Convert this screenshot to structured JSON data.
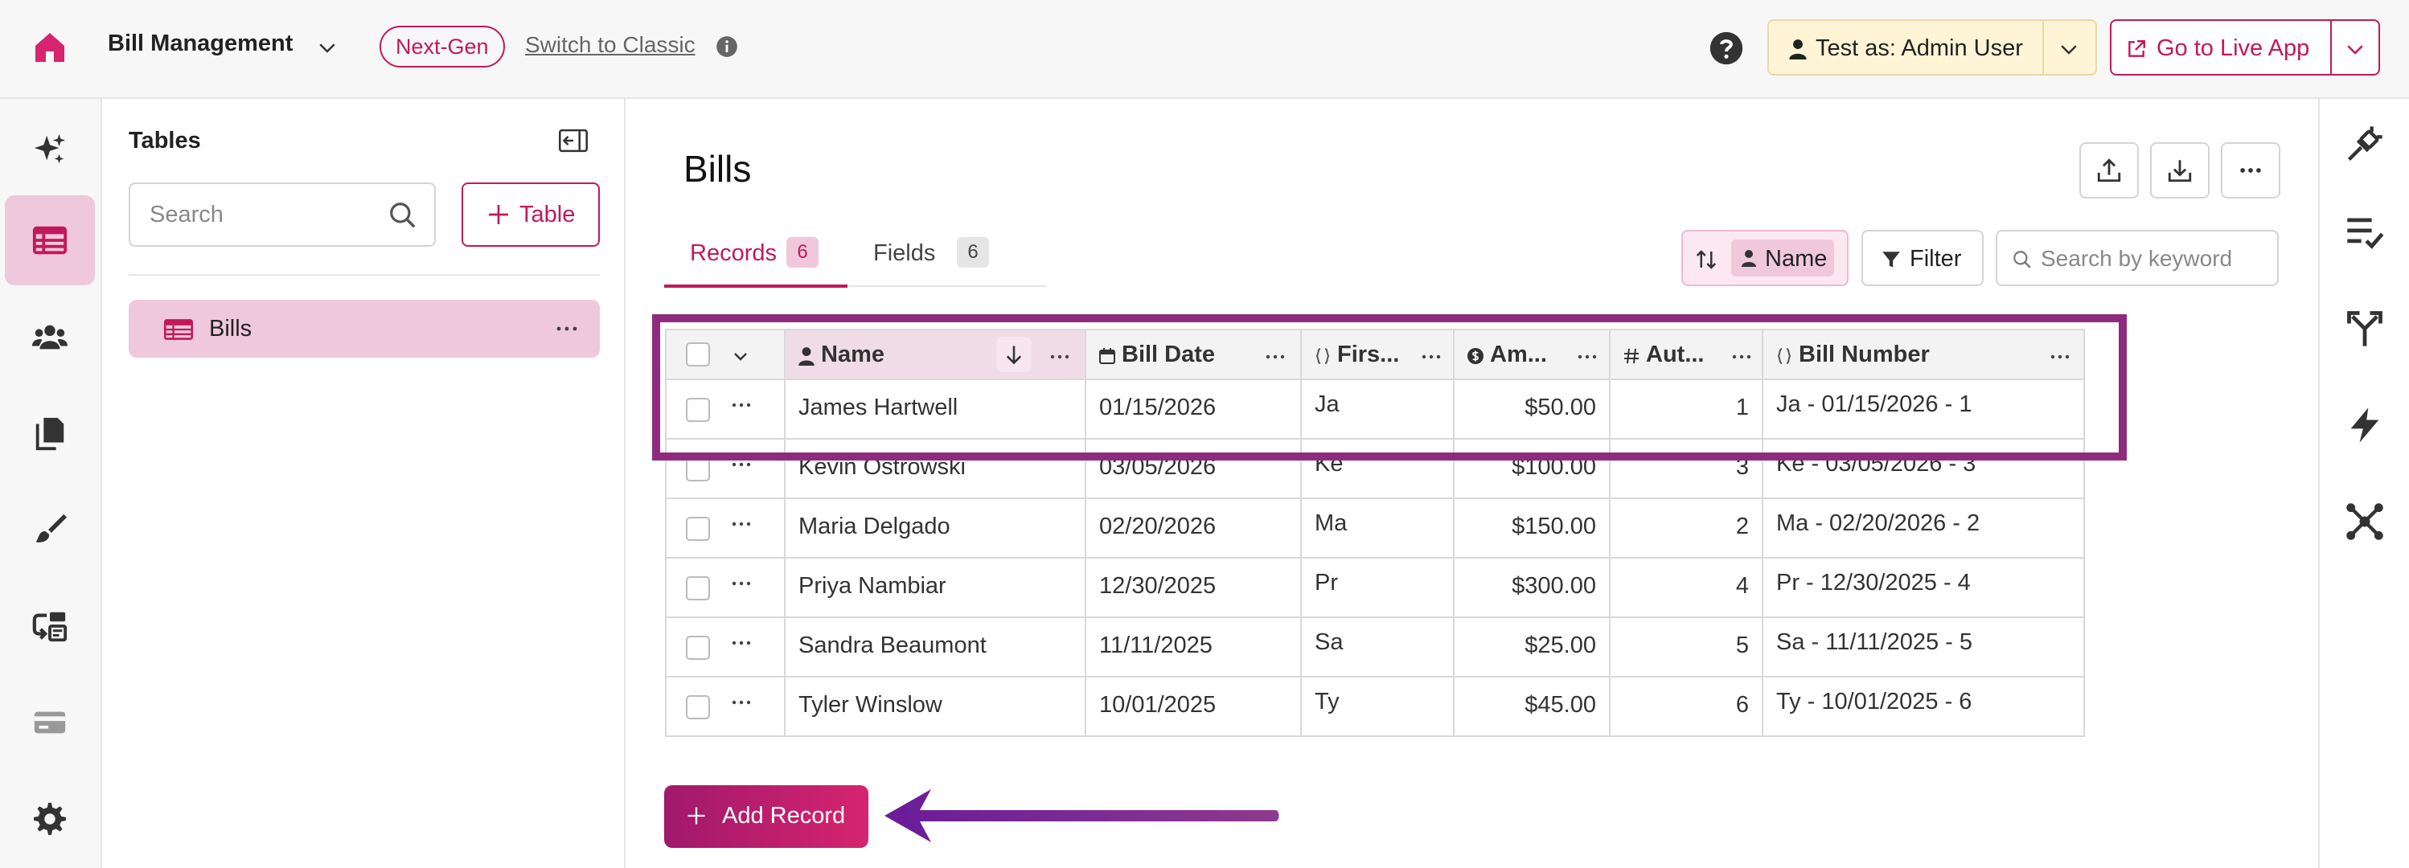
{
  "topbar": {
    "app_name": "Bill Management",
    "nextgen_badge": "Next-Gen",
    "switch_classic": "Switch to Classic",
    "test_as": "Test as: Admin User",
    "go_live": "Go to Live App"
  },
  "tables_panel": {
    "title": "Tables",
    "search_placeholder": "Search",
    "add_table_label": "Table",
    "items": [
      {
        "label": "Bills",
        "selected": true
      }
    ]
  },
  "main": {
    "title": "Bills",
    "tabs": [
      {
        "label": "Records",
        "count": "6",
        "active": true
      },
      {
        "label": "Fields",
        "count": "6",
        "active": false
      }
    ],
    "sort_label": "Name",
    "filter_label": "Filter",
    "keyword_placeholder": "Search by keyword",
    "add_record_label": "Add Record"
  },
  "grid": {
    "columns": [
      {
        "label": "Name",
        "icon": "person-icon"
      },
      {
        "label": "Bill Date",
        "icon": "calendar-icon"
      },
      {
        "label": "Firs...",
        "icon": "formula-icon"
      },
      {
        "label": "Am...",
        "icon": "currency-icon"
      },
      {
        "label": "Aut...",
        "icon": "hash-icon"
      },
      {
        "label": "Bill Number",
        "icon": "formula-icon"
      }
    ],
    "rows": [
      {
        "name": "James Hartwell",
        "date": "01/15/2026",
        "first": "Ja",
        "amount": "$50.00",
        "auto": "1",
        "bill_number": "Ja - 01/15/2026 - 1"
      },
      {
        "name": "Kevin Ostrowski",
        "date": "03/05/2026",
        "first": "Ke",
        "amount": "$100.00",
        "auto": "3",
        "bill_number": "Ke - 03/05/2026 - 3"
      },
      {
        "name": "Maria Delgado",
        "date": "02/20/2026",
        "first": "Ma",
        "amount": "$150.00",
        "auto": "2",
        "bill_number": "Ma - 02/20/2026 - 2"
      },
      {
        "name": "Priya Nambiar",
        "date": "12/30/2025",
        "first": "Pr",
        "amount": "$300.00",
        "auto": "4",
        "bill_number": "Pr - 12/30/2025 - 4"
      },
      {
        "name": "Sandra Beaumont",
        "date": "11/11/2025",
        "first": "Sa",
        "amount": "$25.00",
        "auto": "5",
        "bill_number": "Sa - 11/11/2025 - 5"
      },
      {
        "name": "Tyler Winslow",
        "date": "10/01/2025",
        "first": "Ty",
        "amount": "$45.00",
        "auto": "6",
        "bill_number": "Ty - 10/01/2025 - 6"
      }
    ]
  },
  "colors": {
    "accent": "#c2185b",
    "accent_light": "#f0c8dc",
    "annotation": "#8e2b7f",
    "test_bg": "#fff4d6"
  },
  "rail_icons": [
    "sparkles-icon",
    "table-icon",
    "users-icon",
    "pages-icon",
    "brush-icon",
    "workflow-icon",
    "card-icon",
    "gear-icon"
  ],
  "right_rail_icons": [
    "plug-icon",
    "checklist-icon",
    "branch-icon",
    "lightning-icon",
    "network-icon"
  ]
}
